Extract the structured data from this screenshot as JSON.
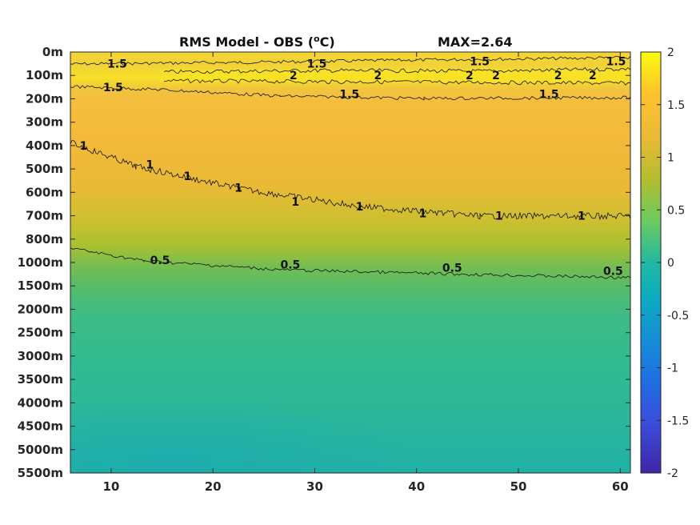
{
  "title": {
    "left": "RMS Model - OBS (",
    "superscript": "o",
    "unit": "C)",
    "max_label": "MAX=2.64"
  },
  "chart_data": {
    "type": "heatmap",
    "title": "RMS Model - OBS (oC)",
    "annotation": "MAX=2.64",
    "xlim": [
      6,
      61
    ],
    "x_ticks": [
      10,
      20,
      30,
      40,
      50,
      60
    ],
    "y_tick_labels": [
      "0m",
      "100m",
      "200m",
      "300m",
      "400m",
      "500m",
      "600m",
      "700m",
      "800m",
      "1000m",
      "1500m",
      "2000m",
      "2500m",
      "3000m",
      "3500m",
      "4000m",
      "4500m",
      "5000m",
      "5500m"
    ],
    "y_reversed": true,
    "colorbar": {
      "min": -2,
      "max": 2,
      "ticks": [
        2,
        1.5,
        1,
        0.5,
        0,
        -0.5,
        -1,
        -1.5,
        -2
      ],
      "colormap": "parula"
    },
    "value_profile": [
      {
        "depth": "0m",
        "value": 1.6
      },
      {
        "depth": "100m",
        "value": 2.0
      },
      {
        "depth": "200m",
        "value": 1.35
      },
      {
        "depth": "300m",
        "value": 1.3
      },
      {
        "depth": "400m",
        "value": 1.25
      },
      {
        "depth": "500m",
        "value": 1.15
      },
      {
        "depth": "600m",
        "value": 1.05
      },
      {
        "depth": "700m",
        "value": 0.95
      },
      {
        "depth": "800m",
        "value": 0.75
      },
      {
        "depth": "1000m",
        "value": 0.55
      },
      {
        "depth": "1500m",
        "value": 0.45
      },
      {
        "depth": "2000m",
        "value": 0.35
      },
      {
        "depth": "3000m",
        "value": 0.3
      },
      {
        "depth": "4000m",
        "value": 0.2
      },
      {
        "depth": "5500m",
        "value": 0.15
      }
    ],
    "contours": [
      {
        "level": 2,
        "labels": [
          {
            "text": "2",
            "x": 27.9,
            "depth": "100m"
          },
          {
            "text": "2",
            "x": 36.2,
            "depth": "100m"
          },
          {
            "text": "2",
            "x": 45.2,
            "depth": "100m"
          },
          {
            "text": "2",
            "x": 47.8,
            "depth": "100m"
          },
          {
            "text": "2",
            "x": 53.9,
            "depth": "100m"
          },
          {
            "text": "2",
            "x": 57.3,
            "depth": "100m"
          }
        ]
      },
      {
        "level": 1.5,
        "labels": [
          {
            "text": "1.5",
            "x": 10.6,
            "depth": "50m"
          },
          {
            "text": "1.5",
            "x": 30.2,
            "depth": "50m"
          },
          {
            "text": "1.5",
            "x": 46.2,
            "depth": "40m"
          },
          {
            "text": "1.5",
            "x": 65.0,
            "depth": "40m"
          },
          {
            "text": "1.5",
            "x": 10.2,
            "depth": "150m"
          },
          {
            "text": "1.5",
            "x": 33.4,
            "depth": "180m"
          },
          {
            "text": "1.5",
            "x": 53.0,
            "depth": "180m"
          }
        ]
      },
      {
        "level": 1,
        "labels": [
          {
            "text": "1",
            "x": 7.3,
            "depth": "400m"
          },
          {
            "text": "1",
            "x": 13.8,
            "depth": "480m"
          },
          {
            "text": "1",
            "x": 17.5,
            "depth": "530m"
          },
          {
            "text": "1",
            "x": 22.5,
            "depth": "580m"
          },
          {
            "text": "1",
            "x": 28.1,
            "depth": "640m"
          },
          {
            "text": "1",
            "x": 34.4,
            "depth": "660m"
          },
          {
            "text": "1",
            "x": 40.6,
            "depth": "690m"
          },
          {
            "text": "1",
            "x": 48.1,
            "depth": "700m"
          },
          {
            "text": "1",
            "x": 56.2,
            "depth": "700m"
          }
        ]
      },
      {
        "level": 0.5,
        "labels": [
          {
            "text": "0.5",
            "x": 14.8,
            "depth": "980m"
          },
          {
            "text": "0.5",
            "x": 27.6,
            "depth": "1040m"
          },
          {
            "text": "0.5",
            "x": 43.5,
            "depth": "1110m"
          },
          {
            "text": "0.5",
            "x": 59.3,
            "depth": "1180m"
          }
        ]
      }
    ]
  }
}
